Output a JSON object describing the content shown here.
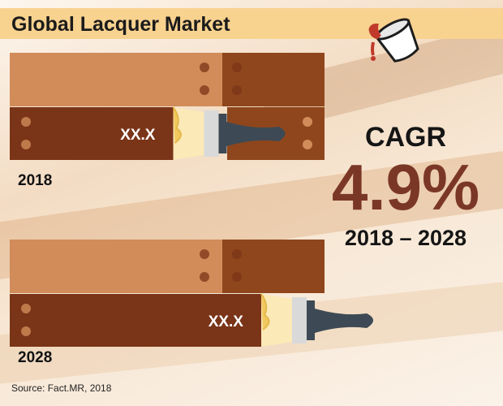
{
  "header": {
    "title": "Global Lacquer Market"
  },
  "chart_data": {
    "type": "bar",
    "categories": [
      "2018",
      "2028"
    ],
    "value_labels": [
      "XX.X",
      "XX.X"
    ],
    "relative_values": [
      0.65,
      1.0
    ],
    "colors": {
      "dark_bar": "#7a3417",
      "light_bar": "#d18c5a",
      "mid_bar": "#8f461c",
      "accent": "#7b3726"
    }
  },
  "cagr": {
    "label": "CAGR",
    "value": "4.9%",
    "period": "2018 – 2028"
  },
  "footer": {
    "source": "Source: Fact.MR, 2018"
  },
  "icons": {
    "logo": "paint-bucket-icon"
  }
}
